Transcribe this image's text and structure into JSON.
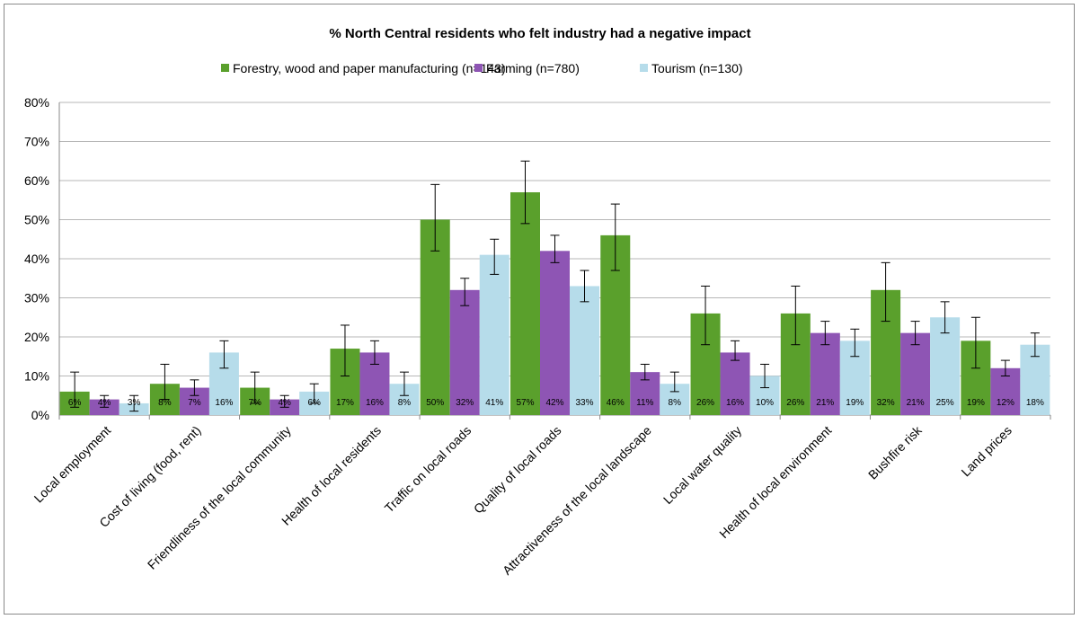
{
  "chart_data": {
    "type": "bar",
    "title": "% North Central residents who felt industry had a negative impact",
    "categories": [
      "Local employment",
      "Cost of living (food, rent)",
      "Friendliness of the local community",
      "Health of local residents",
      "Traffic on local roads",
      "Quality of local roads",
      "Attractiveness of the local landscape",
      "Local water quality",
      "Health of local environment",
      "Bushfire risk",
      "Land prices"
    ],
    "series": [
      {
        "name": "Forestry, wood and paper manufacturing (n=143)",
        "color": "#5aa02c",
        "values": [
          6,
          8,
          7,
          17,
          50,
          57,
          46,
          26,
          26,
          32,
          19
        ],
        "error_low": [
          2,
          4,
          3,
          10,
          42,
          49,
          37,
          18,
          18,
          24,
          12
        ],
        "error_high": [
          11,
          13,
          11,
          23,
          59,
          65,
          54,
          33,
          33,
          39,
          25
        ],
        "labels": [
          "6%",
          "8%",
          "7%",
          "17%",
          "50%",
          "57%",
          "46%",
          "26%",
          "26%",
          "32%",
          "19%"
        ]
      },
      {
        "name": "Farming (n=780)",
        "color": "#8e55b4",
        "values": [
          4,
          7,
          4,
          16,
          32,
          42,
          11,
          16,
          21,
          21,
          12
        ],
        "error_low": [
          2,
          5,
          2,
          13,
          28,
          39,
          9,
          14,
          18,
          18,
          10
        ],
        "error_high": [
          5,
          9,
          5,
          19,
          35,
          46,
          13,
          19,
          24,
          24,
          14
        ],
        "labels": [
          "4%",
          "7%",
          "4%",
          "16%",
          "32%",
          "42%",
          "11%",
          "16%",
          "21%",
          "21%",
          "12%"
        ]
      },
      {
        "name": "Tourism (n=130)",
        "color": "#b6dcea",
        "values": [
          3,
          16,
          6,
          8,
          41,
          33,
          8,
          10,
          19,
          25,
          18
        ],
        "error_low": [
          1,
          12,
          3,
          5,
          36,
          29,
          6,
          7,
          15,
          21,
          15
        ],
        "error_high": [
          5,
          19,
          8,
          11,
          45,
          37,
          11,
          13,
          22,
          29,
          21
        ],
        "labels": [
          "3%",
          "16%",
          "6%",
          "8%",
          "41%",
          "33%",
          "8%",
          "10%",
          "19%",
          "25%",
          "18%"
        ]
      }
    ],
    "y_ticks": [
      "0%",
      "10%",
      "20%",
      "30%",
      "40%",
      "50%",
      "60%",
      "70%",
      "80%"
    ],
    "ylim": [
      0,
      80
    ],
    "grid": true,
    "legend_position": "top"
  }
}
